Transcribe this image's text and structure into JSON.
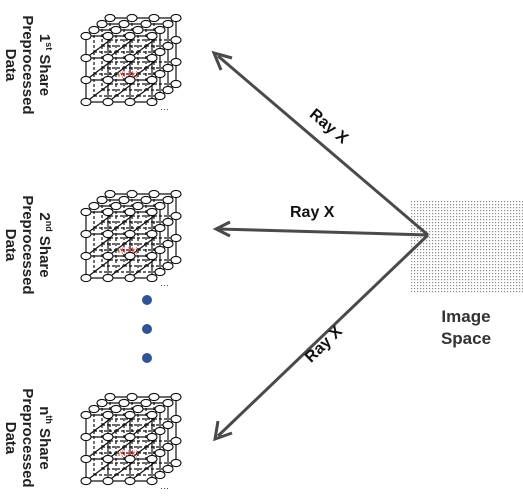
{
  "shares": [
    {
      "num": "1",
      "sup": "st",
      "word": "Share",
      "line2": "Preprocessed",
      "line3": "Data",
      "voxel": "v(i,j,k)"
    },
    {
      "num": "2",
      "sup": "nd",
      "word": "Share",
      "line2": "Preprocessed",
      "line3": "Data",
      "voxel": "v(i,j,k)"
    },
    {
      "num": "n",
      "sup": "th",
      "word": "Share",
      "line2": "Preprocessed",
      "line3": "Data",
      "voxel": "v(i,j,k)"
    }
  ],
  "rays": [
    {
      "label": "Ray X"
    },
    {
      "label": "Ray X"
    },
    {
      "label": "Ray X"
    }
  ],
  "image_space": {
    "line1": "Image",
    "line2": "Space"
  },
  "colors": {
    "arrow": "#4a4a4a",
    "dots": "#2f5496",
    "grid": "#9a9a9a",
    "voxel": "#d9534f"
  }
}
